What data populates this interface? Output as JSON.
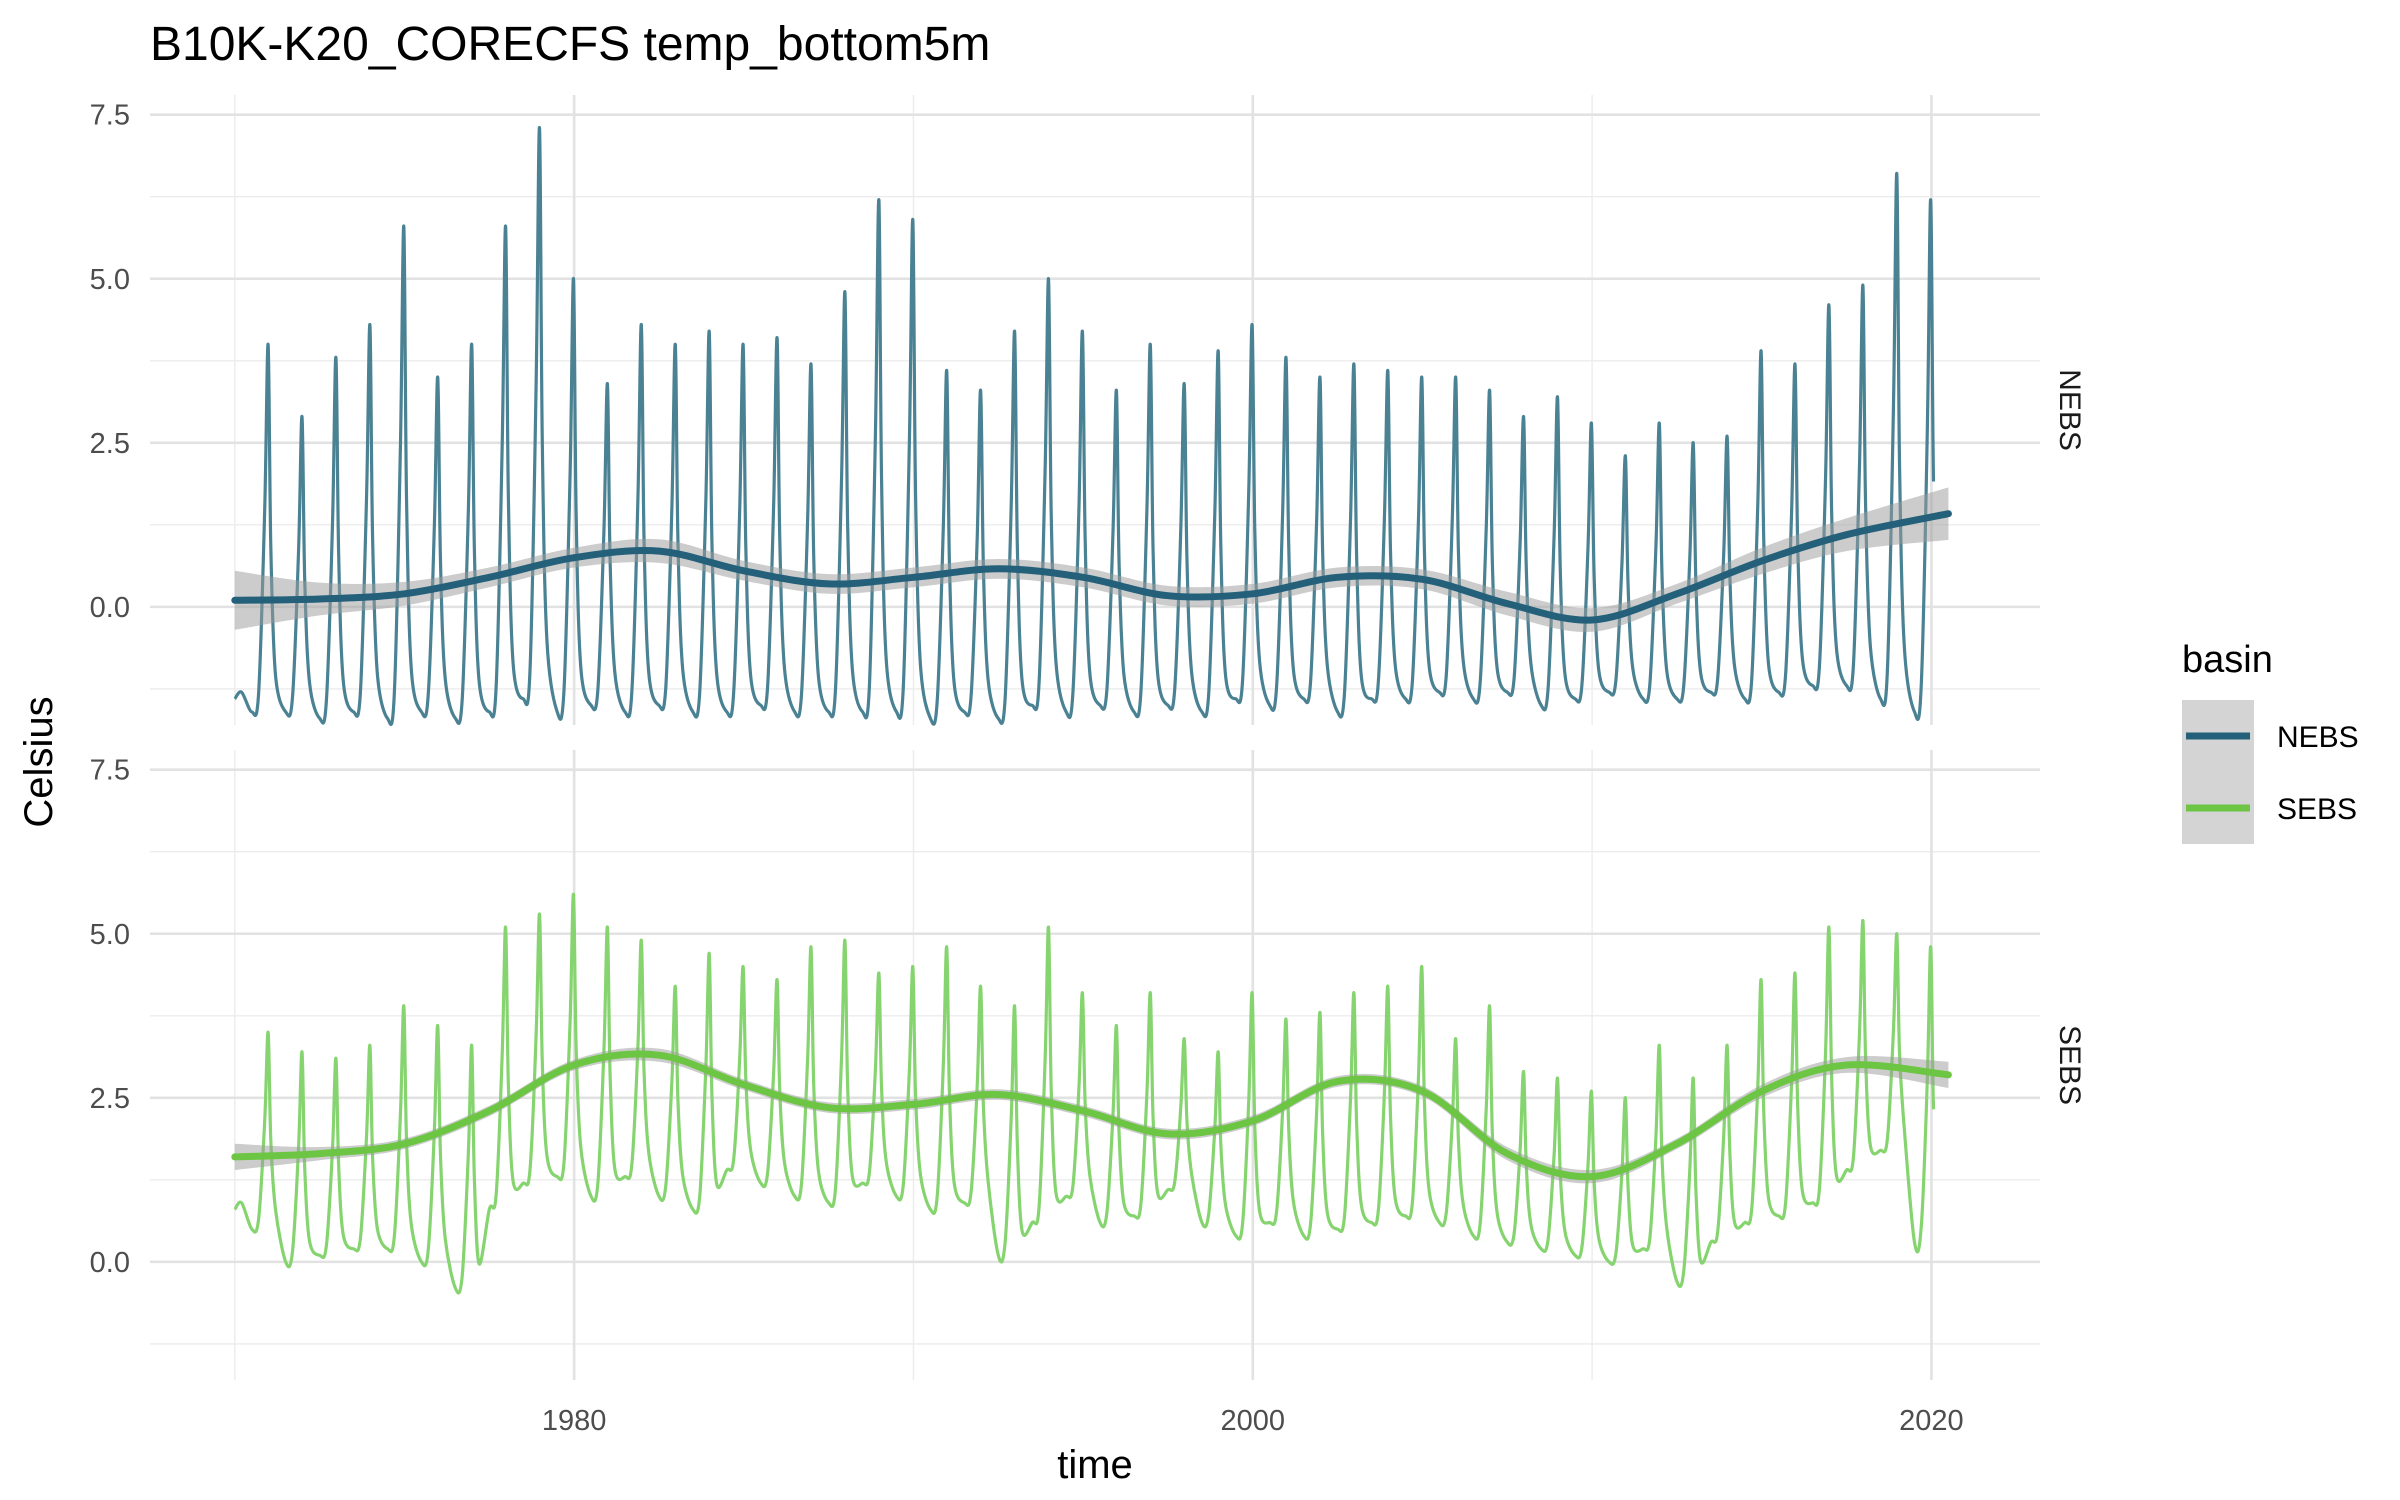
{
  "chart_data": {
    "type": "line",
    "title": "B10K-K20_CORECFS temp_bottom5m",
    "xlabel": "time",
    "ylabel": "Celsius",
    "xlim": [
      1967.5,
      2023.2
    ],
    "x_ticks": [
      1980,
      2000,
      2020
    ],
    "ylim": [
      -1.8,
      7.8
    ],
    "y_ticks": [
      0.0,
      2.5,
      5.0,
      7.5
    ],
    "y_tick_labels": [
      "0.0",
      "2.5",
      "5.0",
      "7.5"
    ],
    "grid": true,
    "legend": {
      "title": "basin",
      "position": "right",
      "entries": [
        "NEBS",
        "SEBS"
      ]
    },
    "panels": [
      {
        "name": "NEBS",
        "raw_color": "#4a8294",
        "smooth_color": "#24607a",
        "raw": {
          "x": [
            1970.0,
            1970.5,
            1971.5,
            1972.5,
            1973.5,
            1974.5,
            1975.5,
            1976.5,
            1977.5,
            1978.5,
            1979.5,
            1980.5,
            1981.5,
            1982.5,
            1983.5,
            1984.5,
            1985.5,
            1986.5,
            1987.5,
            1988.5,
            1989.5,
            1990.5,
            1991.5,
            1992.5,
            1993.5,
            1994.5,
            1995.5,
            1996.5,
            1997.5,
            1998.5,
            1999.5,
            2000.5,
            2001.5,
            2002.5,
            2003.5,
            2004.5,
            2005.5,
            2006.5,
            2007.5,
            2008.5,
            2009.5,
            2010.5,
            2011.5,
            2012.5,
            2013.5,
            2014.5,
            2015.5,
            2016.5,
            2017.5,
            2018.5,
            2019.5,
            2020.5
          ],
          "y_peak": [
            null,
            4.0,
            2.9,
            3.8,
            4.3,
            5.8,
            3.5,
            4.0,
            5.8,
            7.3,
            5.0,
            3.4,
            4.3,
            4.0,
            4.2,
            4.0,
            4.1,
            3.7,
            4.8,
            6.2,
            5.9,
            3.6,
            3.3,
            4.2,
            5.0,
            4.2,
            3.3,
            4.0,
            3.4,
            3.9,
            4.3,
            3.8,
            3.5,
            3.7,
            3.6,
            3.5,
            3.5,
            3.3,
            2.9,
            3.2,
            2.8,
            2.3,
            2.8,
            2.5,
            2.6,
            3.9,
            3.7,
            4.6,
            4.9,
            6.6,
            6.2,
            2.4
          ],
          "y_trough": [
            -1.4,
            -1.6,
            -1.6,
            -1.7,
            -1.6,
            -1.7,
            -1.6,
            -1.7,
            -1.6,
            -1.4,
            -1.6,
            -1.5,
            -1.6,
            -1.5,
            -1.6,
            -1.6,
            -1.5,
            -1.6,
            -1.6,
            -1.6,
            -1.6,
            -1.7,
            -1.6,
            -1.7,
            -1.5,
            -1.6,
            -1.5,
            -1.6,
            -1.5,
            -1.6,
            -1.4,
            -1.5,
            -1.4,
            -1.6,
            -1.4,
            -1.4,
            -1.3,
            -1.4,
            -1.3,
            -1.5,
            -1.4,
            -1.3,
            -1.4,
            -1.4,
            -1.3,
            -1.4,
            -1.3,
            -1.2,
            -1.2,
            -1.4,
            -1.6,
            null
          ]
        },
        "smooth": {
          "x": [
            1970,
            1972.5,
            1975,
            1977.5,
            1980,
            1982.5,
            1985,
            1987.5,
            1990,
            1992.5,
            1995,
            1997.5,
            2000,
            2002.5,
            2005,
            2007.5,
            2010,
            2012.5,
            2015,
            2017.5,
            2020.5
          ],
          "y": [
            0.1,
            0.12,
            0.2,
            0.45,
            0.75,
            0.85,
            0.55,
            0.35,
            0.45,
            0.58,
            0.45,
            0.17,
            0.2,
            0.45,
            0.42,
            0.05,
            -0.2,
            0.2,
            0.7,
            1.1,
            1.42
          ],
          "ci_half_width": [
            0.45,
            0.25,
            0.18,
            0.15,
            0.15,
            0.18,
            0.15,
            0.15,
            0.15,
            0.15,
            0.15,
            0.15,
            0.15,
            0.15,
            0.15,
            0.18,
            0.18,
            0.15,
            0.2,
            0.25,
            0.4
          ]
        }
      },
      {
        "name": "SEBS",
        "raw_color": "#86d46f",
        "smooth_color": "#6cc644",
        "raw": {
          "x": [
            1970.0,
            1970.5,
            1971.5,
            1972.5,
            1973.5,
            1974.5,
            1975.5,
            1976.5,
            1977.5,
            1978.5,
            1979.5,
            1980.5,
            1981.5,
            1982.5,
            1983.5,
            1984.5,
            1985.5,
            1986.5,
            1987.5,
            1988.5,
            1989.5,
            1990.5,
            1991.5,
            1992.5,
            1993.5,
            1994.5,
            1995.5,
            1996.5,
            1997.5,
            1998.5,
            1999.5,
            2000.5,
            2001.5,
            2002.5,
            2003.5,
            2004.5,
            2005.5,
            2006.5,
            2007.5,
            2008.5,
            2009.5,
            2010.5,
            2011.5,
            2012.5,
            2013.5,
            2014.5,
            2015.5,
            2016.5,
            2017.5,
            2018.5,
            2019.5,
            2020.5
          ],
          "y_peak": [
            null,
            3.5,
            3.2,
            3.1,
            3.3,
            3.9,
            3.6,
            3.3,
            5.1,
            5.3,
            5.6,
            5.1,
            4.9,
            4.2,
            4.7,
            4.5,
            4.3,
            4.8,
            4.9,
            4.4,
            4.5,
            4.8,
            4.2,
            3.9,
            5.1,
            4.1,
            3.6,
            4.1,
            3.4,
            3.2,
            4.1,
            3.7,
            3.8,
            4.1,
            4.2,
            4.5,
            3.4,
            3.9,
            2.9,
            2.8,
            2.6,
            2.5,
            3.3,
            2.8,
            3.3,
            4.3,
            4.4,
            5.1,
            5.2,
            5.0,
            4.8,
            2.9
          ],
          "y_trough": [
            0.8,
            0.5,
            0.0,
            0.1,
            0.2,
            0.2,
            0.0,
            -0.4,
            0.8,
            1.2,
            1.3,
            1.0,
            1.3,
            1.0,
            0.8,
            1.4,
            1.2,
            1.0,
            0.9,
            1.2,
            1.0,
            0.8,
            0.9,
            0.1,
            0.6,
            1.0,
            0.6,
            0.7,
            1.1,
            0.6,
            0.4,
            0.6,
            0.4,
            0.5,
            0.6,
            0.7,
            0.6,
            0.4,
            0.3,
            0.2,
            0.1,
            0.0,
            0.2,
            -0.3,
            0.3,
            0.6,
            0.7,
            0.9,
            1.4,
            1.7,
            0.3,
            null
          ]
        },
        "smooth": {
          "x": [
            1970,
            1972.5,
            1975,
            1977.5,
            1980,
            1982.5,
            1985,
            1987.5,
            1990,
            1992.5,
            1995,
            1997.5,
            2000,
            2002.5,
            2005,
            2007.5,
            2010,
            2012.5,
            2015,
            2017.5,
            2020.5
          ],
          "y": [
            1.6,
            1.65,
            1.8,
            2.3,
            3.0,
            3.15,
            2.7,
            2.35,
            2.4,
            2.55,
            2.3,
            1.95,
            2.15,
            2.75,
            2.6,
            1.65,
            1.3,
            1.8,
            2.6,
            3.0,
            2.85
          ],
          "ci_half_width": [
            0.2,
            0.1,
            0.08,
            0.08,
            0.08,
            0.1,
            0.08,
            0.08,
            0.08,
            0.08,
            0.08,
            0.08,
            0.08,
            0.08,
            0.08,
            0.1,
            0.1,
            0.08,
            0.1,
            0.12,
            0.2
          ]
        }
      }
    ]
  }
}
